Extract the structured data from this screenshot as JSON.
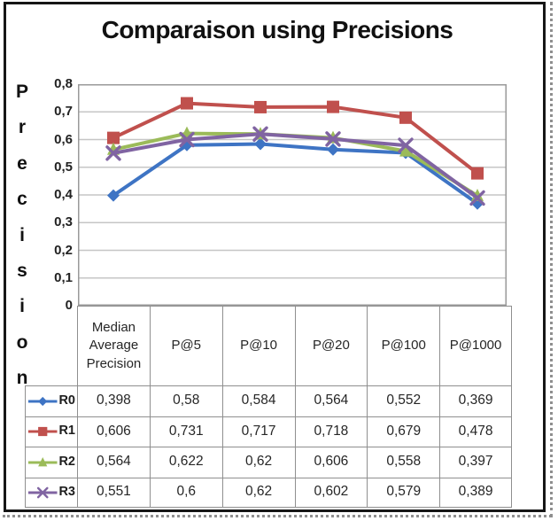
{
  "title": "Comparaison using Precisions",
  "y_axis": {
    "label": "Precision",
    "label_letters": [
      "P",
      "r",
      "e",
      "c",
      "i",
      "s",
      "i",
      "o",
      "n"
    ],
    "ticks": [
      "0,8",
      "0,7",
      "0,6",
      "0,5",
      "0,4",
      "0,3",
      "0,2",
      "0,1",
      "0"
    ]
  },
  "colors": {
    "r0_blue": "#3e74c4",
    "r1_red": "#c0504d",
    "r2_green": "#9bbb59",
    "r3_purple": "#8064a2",
    "gridline": "#c6c6c6",
    "plot_border": "#9a9a9a",
    "table_border": "#8f8f8f"
  },
  "chart_data": {
    "type": "line",
    "title": "Comparaison using Precisions",
    "xlabel": "",
    "ylabel": "Precision",
    "ylim": [
      0,
      0.8
    ],
    "ytick_step": 0.1,
    "grid": true,
    "legend_position": "table-left",
    "categories": [
      "Median Average Precision",
      "P@5",
      "P@10",
      "P@20",
      "P@100",
      "P@1000"
    ],
    "series": [
      {
        "name": "R0",
        "color": "#3e74c4",
        "marker": "diamond",
        "values": [
          0.398,
          0.58,
          0.584,
          0.564,
          0.552,
          0.369
        ]
      },
      {
        "name": "R1",
        "color": "#c0504d",
        "marker": "square",
        "values": [
          0.606,
          0.731,
          0.717,
          0.718,
          0.679,
          0.478
        ]
      },
      {
        "name": "R2",
        "color": "#9bbb59",
        "marker": "triangle",
        "values": [
          0.564,
          0.622,
          0.62,
          0.606,
          0.558,
          0.397
        ]
      },
      {
        "name": "R3",
        "color": "#8064a2",
        "marker": "x",
        "values": [
          0.551,
          0.6,
          0.62,
          0.602,
          0.579,
          0.389
        ]
      }
    ]
  },
  "table": {
    "headers": [
      "Median Average Precision",
      "P@5",
      "P@10",
      "P@20",
      "P@100",
      "P@1000"
    ],
    "rows": [
      {
        "name": "R0",
        "values": [
          "0,398",
          "0,58",
          "0,584",
          "0,564",
          "0,552",
          "0,369"
        ]
      },
      {
        "name": "R1",
        "values": [
          "0,606",
          "0,731",
          "0,717",
          "0,718",
          "0,679",
          "0,478"
        ]
      },
      {
        "name": "R2",
        "values": [
          "0,564",
          "0,622",
          "0,62",
          "0,606",
          "0,558",
          "0,397"
        ]
      },
      {
        "name": "R3",
        "values": [
          "0,551",
          "0,6",
          "0,62",
          "0,602",
          "0,579",
          "0,389"
        ]
      }
    ]
  }
}
